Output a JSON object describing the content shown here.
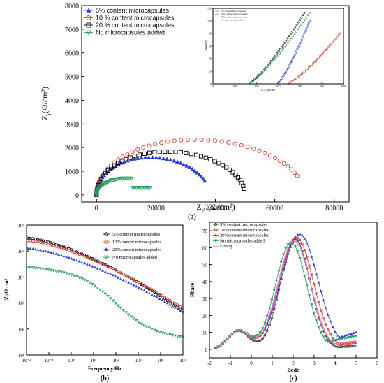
{
  "chart_data": [
    {
      "id": "a",
      "type": "scatter",
      "panel_label": "(a)",
      "xlabel": "Z_r//(Ω/cm²)",
      "ylabel": "Z_i(Ω/cm²)",
      "xlim": [
        -5000,
        85000
      ],
      "ylim": [
        -300,
        8000
      ],
      "xticks": [
        0,
        20000,
        40000,
        60000,
        80000
      ],
      "yticks": [
        0,
        1000,
        2000,
        3000,
        4000,
        5000,
        6000,
        7000,
        8000
      ],
      "legend_position": "top-left",
      "series": [
        {
          "name": "5% content microcapsules",
          "color": "#2b3fd6",
          "marker": "triangle-up",
          "center": 19000,
          "radius": 19000,
          "y_scale": 0.09,
          "t_end": 0.87
        },
        {
          "name": "10 % content microcapsules",
          "color": "#d2402f",
          "marker": "circle",
          "center": 35000,
          "radius": 35000,
          "y_scale": 0.072,
          "t_end": 0.88
        },
        {
          "name": "20 % content microcapsules",
          "color": "#000000",
          "marker": "square",
          "center": 25000,
          "radius": 25000,
          "y_scale": 0.079,
          "t_end": 0.95
        },
        {
          "name": "No microcapsules added",
          "color": "#1f9e5a",
          "marker": "triangle-down",
          "center": 10500,
          "radius": 10500,
          "y_scale": 0.072,
          "t_end": 0.75
        }
      ],
      "inset": {
        "xlabel": "Z_r //(Ω/cm²)",
        "ylabel": "Z_i(Ω/cm²)",
        "xlim": [
          0,
          300
        ],
        "ylim": [
          0,
          120
        ],
        "xticks": [
          0,
          50,
          100,
          150,
          200,
          250,
          300
        ],
        "xtick_labels": [
          "0",
          "100",
          "200",
          "300",
          "400",
          "500",
          "600"
        ],
        "yticks": [
          0,
          20,
          40,
          60,
          80,
          100,
          120
        ],
        "legend": [
          "5% content microcapsules",
          "10% content microcapsules",
          "20% content microcapsules",
          "No microcapsules added"
        ],
        "series": [
          {
            "name": "5% content microcapsules",
            "color": "#2b3fd6",
            "x0": 150,
            "x1": 222,
            "y1": 100
          },
          {
            "name": "10% content microcapsules",
            "color": "#d2402f",
            "x0": 175,
            "x1": 292,
            "y1": 80
          },
          {
            "name": "20% content microcapsules",
            "color": "#000000",
            "x0": 85,
            "x1": 210,
            "y1": 113
          },
          {
            "name": "No microcapsules added",
            "color": "#1f9e5a",
            "x0": 85,
            "x1": 222,
            "y1": 113
          }
        ]
      }
    },
    {
      "id": "b",
      "type": "scatter",
      "panel_label": "(b)",
      "xlabel": "Frequency/Hz",
      "ylabel": "|Z|/Ω cm²",
      "x_scale": "log",
      "y_scale": "log",
      "xlim": [
        0.01,
        100000
      ],
      "ylim": [
        10,
        1000000
      ],
      "xticks": [
        0.01,
        0.1,
        1,
        10,
        100,
        1000,
        10000,
        100000
      ],
      "xtick_labels": [
        "10⁻²",
        "10⁻¹",
        "10⁰",
        "10¹",
        "10²",
        "10³",
        "10⁴",
        "10⁵"
      ],
      "yticks": [
        10,
        100,
        1000,
        10000,
        100000,
        1000000
      ],
      "ytick_labels": [
        "10¹",
        "10²",
        "10³",
        "10⁴",
        "10⁵",
        "10⁶"
      ],
      "legend_position": "top-right",
      "series": [
        {
          "name": "5% content microcapsules",
          "color": "#000000",
          "marker": "circle",
          "log_start": 5.5,
          "log_end": 2.7,
          "shape": "smooth"
        },
        {
          "name": "10%content microcapsules",
          "color": "#d2402f",
          "marker": "circle",
          "log_start": 5.4,
          "log_end": 2.8,
          "shape": "smooth"
        },
        {
          "name": "20%content microcapsules",
          "color": "#2b3fd6",
          "marker": "triangle-up",
          "log_start": 5.1,
          "log_end": 2.65,
          "shape": "smooth"
        },
        {
          "name": "No microcapsules added",
          "color": "#1f9e5a",
          "marker": "triangle-down",
          "log_start": 4.4,
          "log_end": 1.65,
          "shape": "sigmoid"
        }
      ]
    },
    {
      "id": "c",
      "type": "line",
      "panel_label": "(c)",
      "xlabel": "Bode",
      "ylabel": "Phase",
      "xlim": [
        -2,
        6
      ],
      "ylim": [
        -5,
        75
      ],
      "xticks": [
        -2,
        -1,
        0,
        1,
        2,
        3,
        4,
        5,
        6
      ],
      "yticks": [
        0,
        10,
        20,
        30,
        40,
        50,
        60,
        70
      ],
      "legend_position": "top-left",
      "series": [
        {
          "name": "5% content microcapsules",
          "color": "#444444",
          "marker": "circle",
          "peak_x": 2.1,
          "peak": 65,
          "width": 1.05,
          "end": 2
        },
        {
          "name": "10%content microcapsules",
          "color": "#d2402f",
          "marker": "circle",
          "peak_x": 2.15,
          "peak": 66,
          "width": 1.2,
          "end": 4
        },
        {
          "name": "20%content microcapsules",
          "color": "#2b3fd6",
          "marker": "triangle-up",
          "peak_x": 2.3,
          "peak": 68,
          "width": 1.3,
          "end": 10
        },
        {
          "name": "No microcapsules added",
          "color": "#1f9e5a",
          "marker": "triangle-down",
          "peak_x": 1.9,
          "peak": 63,
          "width": 1.1,
          "end": 8
        },
        {
          "name": "Fitting",
          "color": "#e07bd6",
          "marker": "line",
          "peak_x": 2.05,
          "peak": 64,
          "width": 1.15,
          "end": 5
        }
      ]
    }
  ]
}
